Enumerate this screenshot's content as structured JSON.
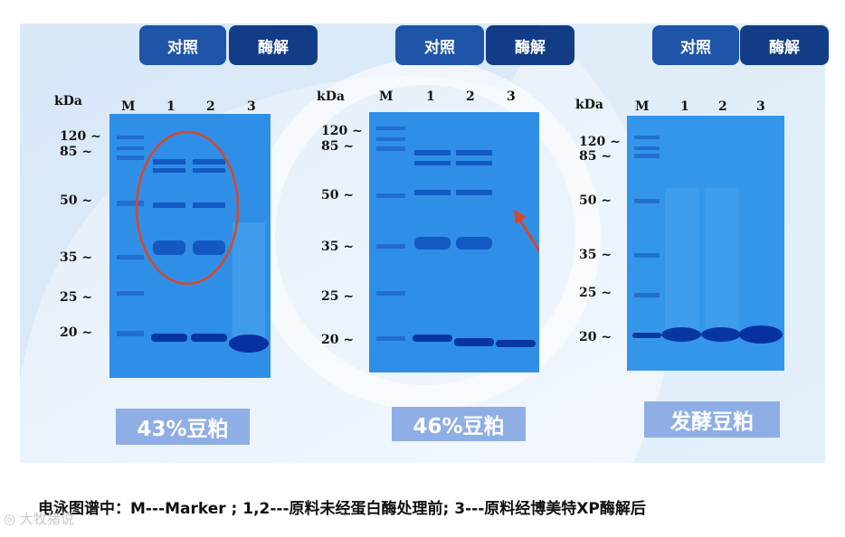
{
  "panels": [
    {
      "control_label": "对照",
      "enzyme_label": "酶解",
      "axis_unit": "kDa",
      "lanes": [
        "M",
        "1",
        "2",
        "3"
      ],
      "markers": [
        "120 ~",
        "85 ~",
        "50 ~",
        "35 ~",
        "25 ~",
        "20 ~"
      ],
      "sample_label": "43%豆粕"
    },
    {
      "control_label": "对照",
      "enzyme_label": "酶解",
      "axis_unit": "kDa",
      "lanes": [
        "M",
        "1",
        "2",
        "3"
      ],
      "markers": [
        "120 ~",
        "85 ~",
        "50 ~",
        "35 ~",
        "25 ~",
        "20 ~"
      ],
      "sample_label": "46%豆粕"
    },
    {
      "control_label": "对照",
      "enzyme_label": "酶解",
      "axis_unit": "kDa",
      "lanes": [
        "M",
        "1",
        "2",
        "3"
      ],
      "markers": [
        "120 ~",
        "85 ~",
        "50 ~",
        "35 ~",
        "25 ~",
        "20 ~"
      ],
      "sample_label": "发酵豆粕"
    }
  ],
  "caption": "电泳图谱中：M---Marker ; 1,2---原料未经蛋白酶处理前; 3---原料经博美特XP酶解后",
  "watermark": "大牧猪说",
  "colors": {
    "button_control": "#1f55a8",
    "button_enzyme": "#123c86",
    "gel": "#2f8fe6",
    "band": "#0a3fb0",
    "annotation": "#d9452b"
  }
}
